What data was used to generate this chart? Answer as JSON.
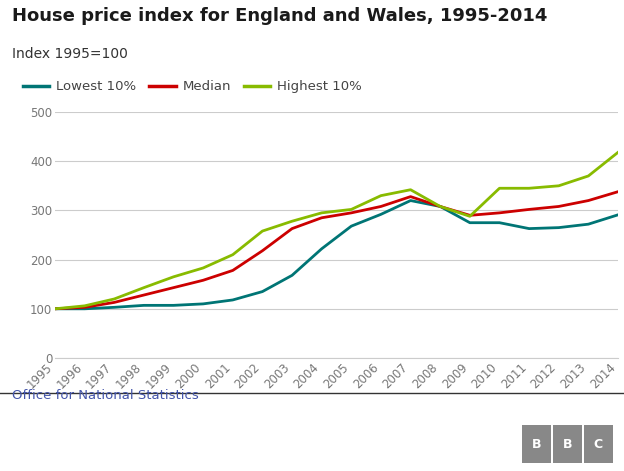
{
  "title": "House price index for England and Wales, 1995-2014",
  "subtitle": "Index 1995=100",
  "source": "Office for National Statistics",
  "years": [
    1995,
    1996,
    1997,
    1998,
    1999,
    2000,
    2001,
    2002,
    2003,
    2004,
    2005,
    2006,
    2007,
    2008,
    2009,
    2010,
    2011,
    2012,
    2013,
    2014
  ],
  "lowest_10": [
    100,
    100,
    103,
    107,
    107,
    110,
    118,
    135,
    168,
    222,
    268,
    292,
    320,
    308,
    275,
    275,
    263,
    265,
    272,
    291
  ],
  "median": [
    100,
    103,
    113,
    128,
    143,
    158,
    178,
    218,
    263,
    285,
    295,
    308,
    328,
    308,
    290,
    295,
    302,
    308,
    320,
    338
  ],
  "highest_10": [
    100,
    106,
    120,
    143,
    165,
    183,
    210,
    258,
    278,
    295,
    302,
    330,
    342,
    308,
    288,
    345,
    345,
    350,
    370,
    418
  ],
  "lowest_color": "#007575",
  "median_color": "#cc0000",
  "highest_color": "#88bb00",
  "bg_color": "#ffffff",
  "grid_color": "#cccccc",
  "title_color": "#1a1a1a",
  "subtitle_color": "#333333",
  "source_color": "#4455aa",
  "tick_color": "#777777",
  "ylim": [
    0,
    500
  ],
  "yticks": [
    0,
    100,
    200,
    300,
    400,
    500
  ],
  "line_width": 2.0,
  "title_fontsize": 13,
  "subtitle_fontsize": 10,
  "legend_fontsize": 9.5,
  "tick_fontsize": 8.5,
  "source_fontsize": 9.5,
  "bbc_gray": "#888888"
}
